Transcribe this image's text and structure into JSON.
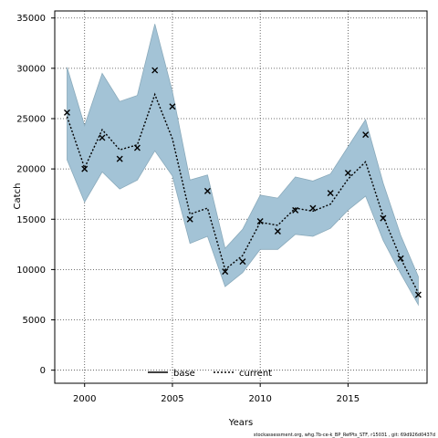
{
  "chart_data": {
    "type": "line",
    "xlabel": "Years",
    "ylabel": "Catch",
    "xlim": [
      1998.3,
      2019.5
    ],
    "ylim": [
      -1300,
      35700
    ],
    "xticks": [
      2000,
      2005,
      2010,
      2015
    ],
    "yticks": [
      0,
      5000,
      10000,
      15000,
      20000,
      25000,
      30000,
      35000
    ],
    "grid": true,
    "legend": {
      "placement": "bottom-center",
      "entries": [
        "base",
        "current"
      ]
    },
    "colors": {
      "band": "#a3c3d6",
      "band_edge": "#8aaabb",
      "line": "#000000",
      "grid": "#444444"
    },
    "x": [
      1999,
      2000,
      2001,
      2002,
      2003,
      2004,
      2005,
      2006,
      2007,
      2008,
      2009,
      2010,
      2011,
      2012,
      2013,
      2014,
      2015,
      2016,
      2017,
      2018,
      2019
    ],
    "series": [
      {
        "name": "current",
        "style": "dotted-line",
        "values": [
          25200,
          20100,
          23900,
          21900,
          22400,
          27400,
          23000,
          15500,
          16100,
          10000,
          11400,
          14700,
          14400,
          16100,
          15800,
          16500,
          19000,
          20700,
          15300,
          11100,
          7700
        ]
      },
      {
        "name": "base",
        "style": "cross-markers",
        "values": [
          25600,
          20000,
          23100,
          21000,
          22100,
          29800,
          26200,
          15000,
          17800,
          9800,
          10800,
          14800,
          13800,
          15900,
          16100,
          17600,
          19600,
          23400,
          15100,
          11100,
          7500
        ]
      }
    ],
    "band": {
      "upper": [
        30100,
        24300,
        29500,
        26700,
        27300,
        34400,
        27700,
        18900,
        19400,
        12100,
        14000,
        17400,
        17100,
        19200,
        18800,
        19500,
        22200,
        24900,
        18600,
        13400,
        9300
      ],
      "lower": [
        20900,
        16700,
        19700,
        18000,
        18900,
        21800,
        19300,
        12600,
        13300,
        8300,
        9700,
        12000,
        12000,
        13500,
        13300,
        14100,
        15900,
        17300,
        12900,
        9600,
        6500
      ]
    }
  },
  "footer": "stockassessment.org, whg.7b-ce-k_BP_RefPts_STF, r15031 , git: 69d926d0437d"
}
